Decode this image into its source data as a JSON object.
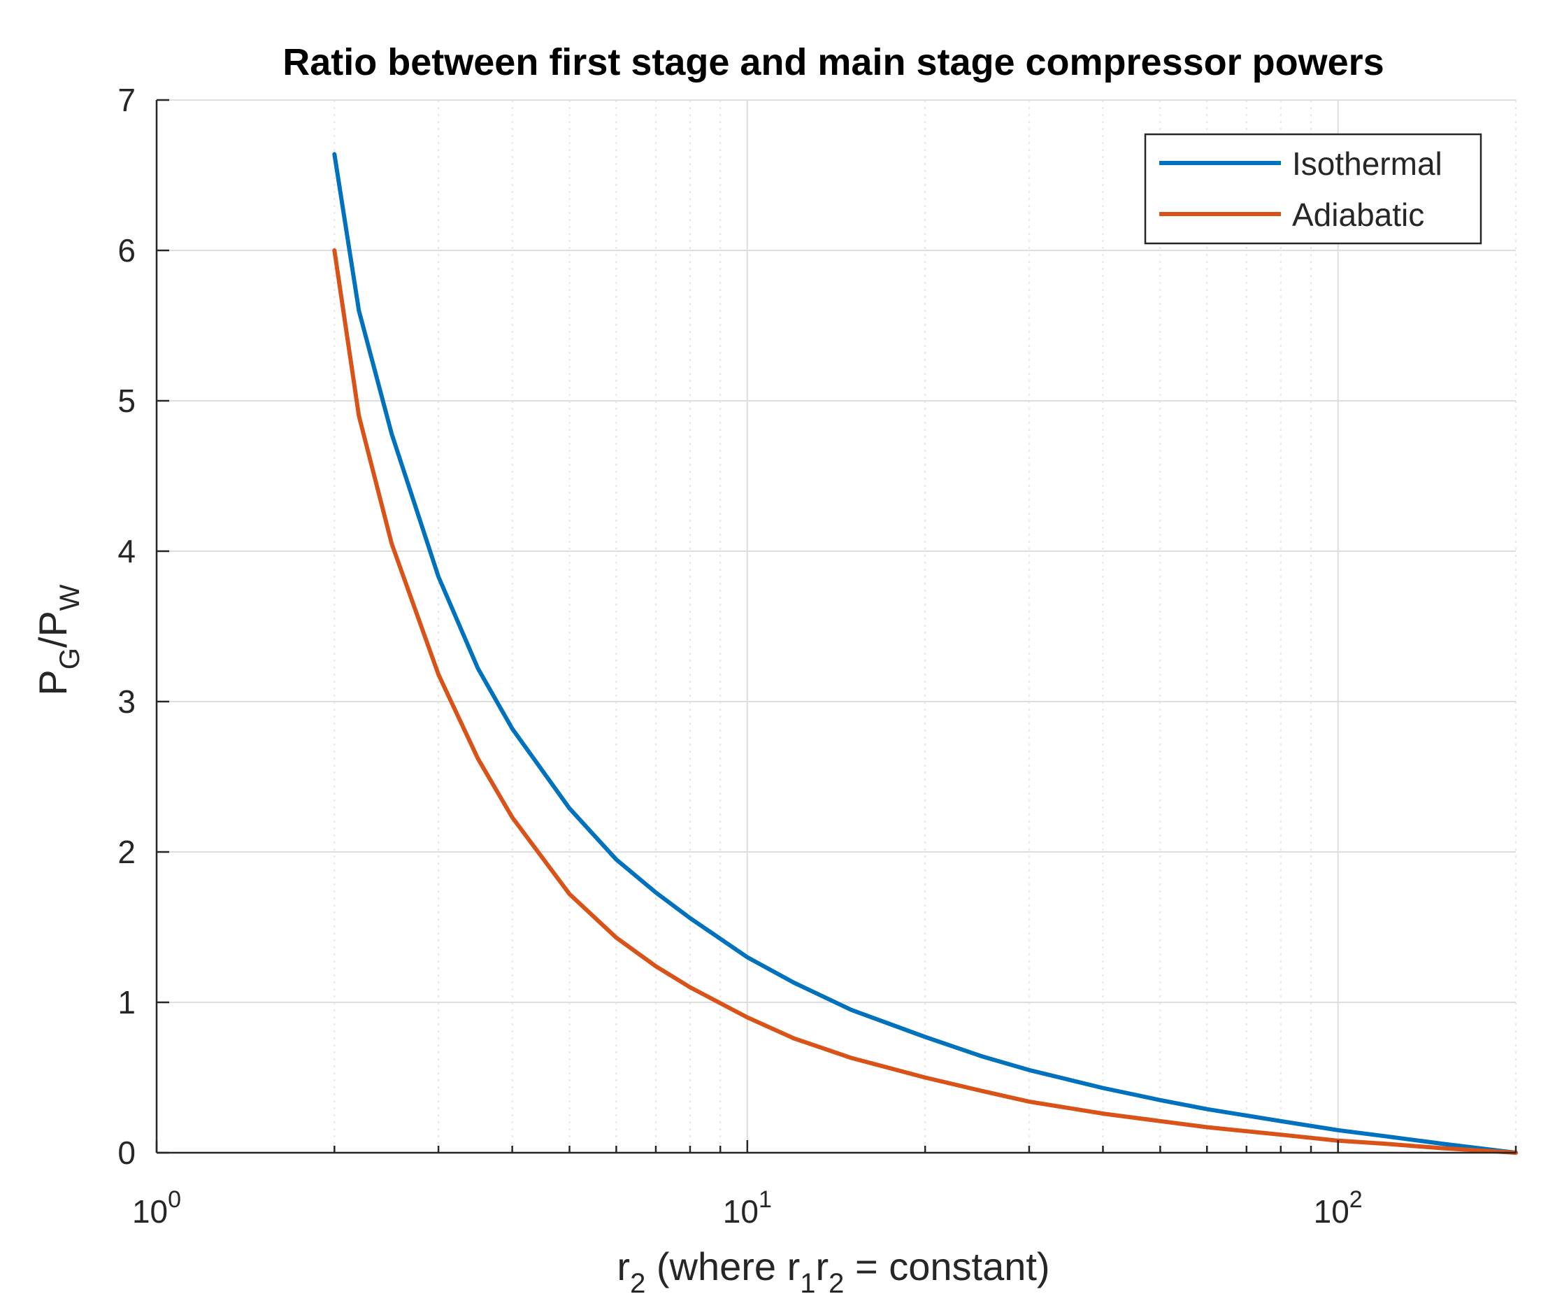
{
  "chart_data": {
    "type": "line",
    "title": "Ratio between first stage and main stage compressor powers",
    "xlabel": {
      "base": "r",
      "sub": "2",
      "rest": " (where r",
      "sub1": "1",
      "mid": "r",
      "sub2": "2",
      "tail": " = constant)"
    },
    "ylabel": {
      "base": "P",
      "sub": "G",
      "slash": "/P",
      "sub2": "W"
    },
    "xscale": "log",
    "xlim": [
      1,
      200
    ],
    "ylim": [
      0,
      7
    ],
    "yticks": [
      "0",
      "1",
      "2",
      "3",
      "4",
      "5",
      "6",
      "7"
    ],
    "xticks": [
      {
        "value": 1,
        "base": "10",
        "exp": "0"
      },
      {
        "value": 10,
        "base": "10",
        "exp": "1"
      },
      {
        "value": 100,
        "base": "10",
        "exp": "2"
      }
    ],
    "grid": true,
    "legend_position": "top-right",
    "series": [
      {
        "name": "Isothermal",
        "color": "#0072BD",
        "x": [
          2,
          2.2,
          2.5,
          3,
          3.5,
          4,
          5,
          6,
          7,
          8,
          10,
          12,
          15,
          20,
          25,
          30,
          40,
          50,
          60,
          80,
          100,
          120,
          150,
          200
        ],
        "y": [
          6.64,
          5.6,
          4.78,
          3.83,
          3.22,
          2.82,
          2.29,
          1.95,
          1.73,
          1.56,
          1.3,
          1.13,
          0.95,
          0.77,
          0.64,
          0.55,
          0.43,
          0.35,
          0.29,
          0.21,
          0.15,
          0.11,
          0.06,
          0.0
        ]
      },
      {
        "name": "Adiabatic",
        "color": "#D95319",
        "x": [
          2,
          2.2,
          2.5,
          3,
          3.5,
          4,
          5,
          6,
          7,
          8,
          10,
          12,
          15,
          20,
          25,
          30,
          40,
          50,
          60,
          80,
          100,
          120,
          150,
          200
        ],
        "y": [
          6.0,
          4.9,
          4.05,
          3.18,
          2.62,
          2.23,
          1.72,
          1.43,
          1.24,
          1.1,
          0.9,
          0.76,
          0.63,
          0.5,
          0.41,
          0.34,
          0.26,
          0.21,
          0.17,
          0.12,
          0.08,
          0.06,
          0.03,
          0.0
        ]
      }
    ]
  }
}
